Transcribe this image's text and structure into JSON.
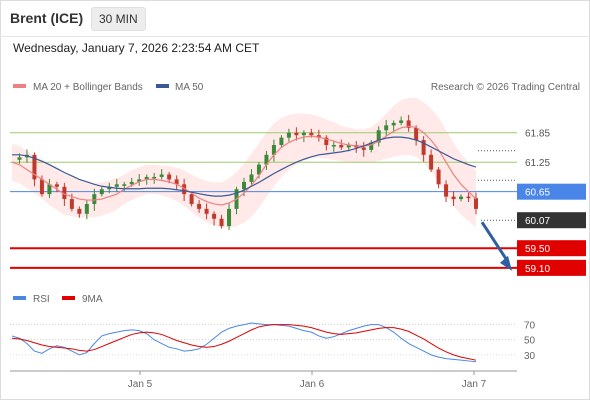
{
  "header": {
    "instrument": "Brent (ICE)",
    "timeframe": "30 MIN"
  },
  "datetime": "Wednesday, January 7, 2026 2:23:54 AM CET",
  "legend": {
    "bb": "MA 20 + Bollinger Bands",
    "ma50": "MA 50",
    "copyright": "Research © 2026 Trading Central"
  },
  "rsi_legend": {
    "rsi": "RSI",
    "ma": "9MA"
  },
  "colors": {
    "up": "#3a8a3a",
    "down": "#c0392b",
    "ma20": "#f08080",
    "band": "#ffe3e3",
    "ma50": "#3b5998",
    "green_line": "#9acd6a",
    "blue_line": "#4a86e8",
    "red_line": "#e00000",
    "arrow": "#2e5fa3"
  },
  "chart_data": [
    {
      "type": "line",
      "title": "Brent (ICE)",
      "subtitle": "30 MIN",
      "xlabel": "",
      "ylabel": "",
      "x_ticks": [
        "Jan 5",
        "Jan 6",
        "Jan 7"
      ],
      "ylim": [
        58.8,
        62.3
      ],
      "levels": [
        {
          "value": 61.85,
          "label": "61.85",
          "color": "#9acd6a",
          "style": "resistance"
        },
        {
          "value": 61.25,
          "label": "61.25",
          "color": "#9acd6a",
          "style": "resistance"
        },
        {
          "value": 60.65,
          "label": "60.65",
          "color": "#4a86e8",
          "style": "pivot"
        },
        {
          "value": 59.5,
          "label": "59.50",
          "color": "#e00000",
          "style": "support"
        },
        {
          "value": 59.1,
          "label": "59.10",
          "color": "#e00000",
          "style": "support"
        }
      ],
      "last_price": 60.07,
      "series": [
        {
          "name": "Close",
          "values": [
            61.3,
            61.35,
            61.4,
            60.9,
            60.6,
            60.8,
            60.75,
            60.5,
            60.3,
            60.2,
            60.4,
            60.6,
            60.7,
            60.75,
            60.8,
            60.8,
            60.85,
            60.9,
            60.95,
            60.95,
            61.0,
            60.9,
            60.8,
            60.6,
            60.4,
            60.3,
            60.2,
            60.1,
            59.95,
            60.3,
            60.7,
            60.85,
            61.0,
            61.2,
            61.4,
            61.6,
            61.75,
            61.85,
            61.8,
            61.85,
            61.8,
            61.75,
            61.6,
            61.6,
            61.55,
            61.6,
            61.55,
            61.5,
            61.65,
            61.9,
            62.0,
            62.05,
            62.1,
            61.95,
            61.7,
            61.4,
            61.1,
            60.8,
            60.55,
            60.5,
            60.55,
            60.52,
            60.3
          ]
        },
        {
          "name": "MA 20 + Bollinger Bands",
          "values": [
            61.25,
            61.2,
            61.1,
            61.0,
            60.9,
            60.8,
            60.7,
            60.6,
            60.55,
            60.5,
            60.48,
            60.48,
            60.5,
            60.55,
            60.6,
            60.7,
            60.78,
            60.85,
            60.9,
            60.9,
            60.88,
            60.85,
            60.8,
            60.72,
            60.62,
            60.52,
            60.45,
            60.4,
            60.38,
            60.42,
            60.5,
            60.62,
            60.78,
            60.98,
            61.2,
            61.4,
            61.55,
            61.65,
            61.72,
            61.76,
            61.78,
            61.76,
            61.72,
            61.68,
            61.63,
            61.6,
            61.58,
            61.58,
            61.6,
            61.68,
            61.78,
            61.88,
            61.95,
            61.98,
            61.96,
            61.85,
            61.7,
            61.5,
            61.25,
            61.0,
            60.8,
            60.65,
            60.5
          ]
        },
        {
          "name": "MA 50",
          "values": [
            61.4,
            61.4,
            61.38,
            61.33,
            61.27,
            61.2,
            61.12,
            61.04,
            60.97,
            60.9,
            60.85,
            60.8,
            60.76,
            60.74,
            60.72,
            60.71,
            60.71,
            60.71,
            60.72,
            60.72,
            60.72,
            60.71,
            60.69,
            60.67,
            60.64,
            60.61,
            60.58,
            60.56,
            60.56,
            60.58,
            60.62,
            60.68,
            60.76,
            60.84,
            60.93,
            61.02,
            61.1,
            61.18,
            61.25,
            61.31,
            61.36,
            61.4,
            61.42,
            61.44,
            61.46,
            61.49,
            61.53,
            61.58,
            61.64,
            61.7,
            61.74,
            61.76,
            61.76,
            61.74,
            61.7,
            61.64,
            61.56,
            61.48,
            61.4,
            61.32,
            61.26,
            61.2,
            61.15
          ]
        }
      ]
    },
    {
      "type": "line",
      "title": "",
      "xlabel": "",
      "ylabel": "",
      "y_ticks": [
        "70",
        "50",
        "30"
      ],
      "ylim": [
        14,
        80
      ],
      "series": [
        {
          "name": "RSI",
          "values": [
            55,
            52,
            45,
            35,
            32,
            38,
            42,
            40,
            35,
            30,
            33,
            45,
            55,
            58,
            60,
            62,
            63,
            62,
            58,
            50,
            45,
            40,
            38,
            35,
            36,
            38,
            44,
            52,
            60,
            65,
            68,
            70,
            72,
            71,
            70,
            70,
            69,
            68,
            65,
            62,
            60,
            55,
            52,
            54,
            58,
            62,
            65,
            68,
            70,
            70,
            66,
            60,
            52,
            45,
            40,
            35,
            30,
            27,
            25,
            24,
            23,
            22,
            21
          ]
        },
        {
          "name": "9MA",
          "values": [
            52,
            51,
            49,
            46,
            43,
            41,
            40,
            39,
            38,
            36,
            35,
            37,
            41,
            45,
            49,
            53,
            57,
            59,
            60,
            59,
            57,
            53,
            49,
            46,
            43,
            41,
            40,
            41,
            44,
            48,
            53,
            58,
            63,
            67,
            69,
            70,
            70,
            70,
            69,
            68,
            66,
            63,
            60,
            58,
            57,
            58,
            59,
            61,
            63,
            65,
            66,
            66,
            64,
            61,
            56,
            51,
            45,
            39,
            34,
            30,
            27,
            25,
            23
          ]
        }
      ]
    }
  ]
}
